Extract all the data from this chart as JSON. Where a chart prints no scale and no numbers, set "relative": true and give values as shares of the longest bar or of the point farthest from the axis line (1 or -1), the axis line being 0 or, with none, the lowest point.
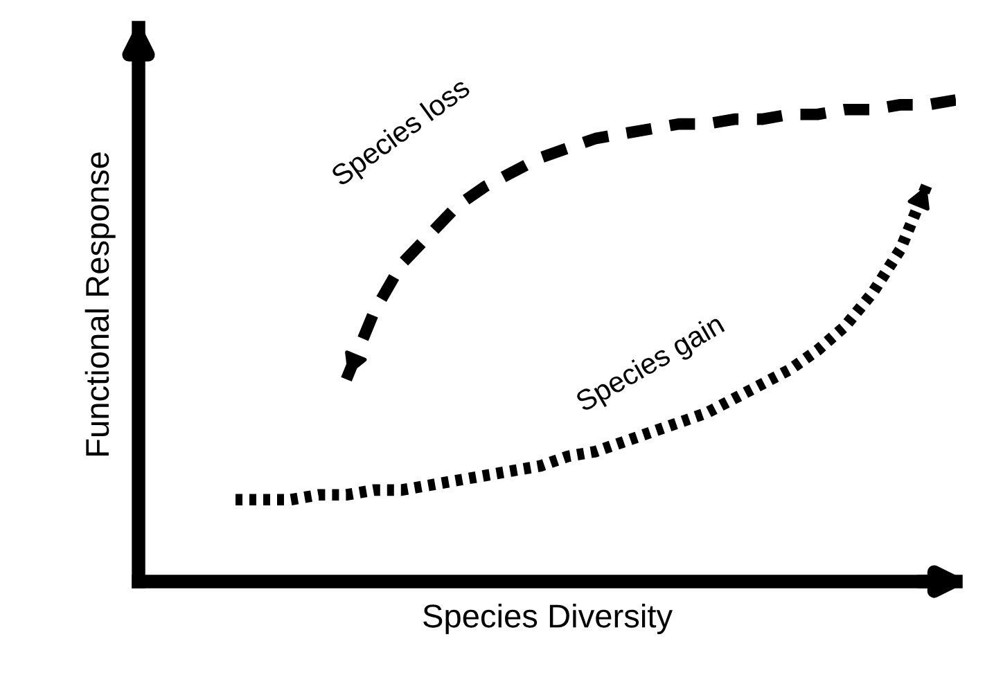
{
  "chart_data": {
    "type": "line",
    "relative": true,
    "xlabel": "Species Diversity",
    "ylabel": "Functional Response",
    "legend": false,
    "grid": false,
    "categories": [
      null,
      null,
      null,
      null,
      null,
      null,
      null,
      null,
      null,
      null,
      null,
      null,
      null,
      null,
      null,
      null,
      null,
      null,
      null,
      null,
      null,
      null,
      null,
      null,
      null,
      null,
      null,
      null
    ],
    "series": [
      {
        "name": "Species loss",
        "color": "#000000",
        "line_style": "dashed",
        "values": [
          null,
          null,
          null,
          null,
          null,
          0.42,
          0.56,
          0.66,
          0.72,
          0.78,
          0.82,
          0.85,
          0.88,
          0.9,
          0.92,
          0.93,
          0.94,
          0.95,
          0.95,
          0.96,
          0.96,
          0.97,
          0.97,
          0.98,
          0.98,
          0.99,
          0.99,
          1.0
        ]
      },
      {
        "name": "Species gain",
        "color": "#000000",
        "line_style": "dotted",
        "values": [
          null,
          0.17,
          0.17,
          0.17,
          0.18,
          0.18,
          0.19,
          0.19,
          0.2,
          0.21,
          0.22,
          0.23,
          0.24,
          0.26,
          0.27,
          0.29,
          0.31,
          0.33,
          0.35,
          0.38,
          0.41,
          0.44,
          0.48,
          0.53,
          0.6,
          0.69,
          0.83,
          null
        ]
      }
    ]
  }
}
